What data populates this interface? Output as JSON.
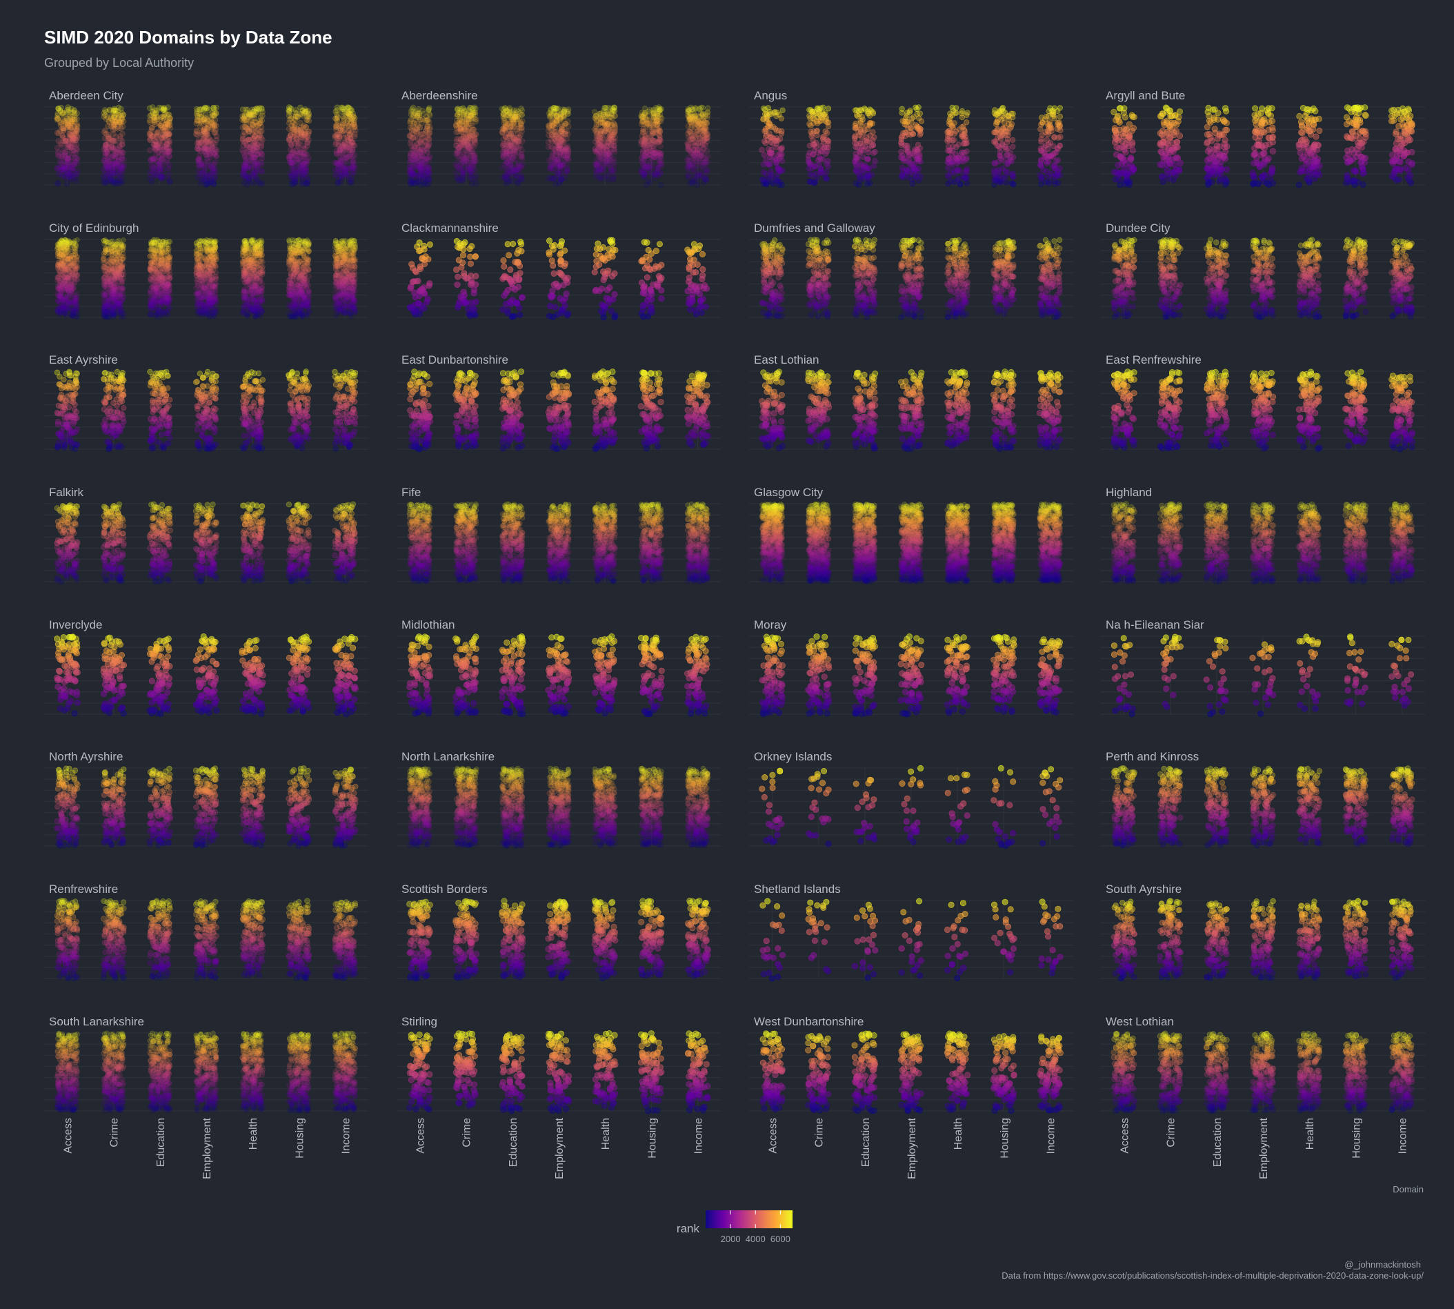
{
  "chart_data": {
    "type": "scatter",
    "title": "SIMD 2020 Domains by Data Zone",
    "subtitle": "Grouped by Local Authority",
    "xlabel": "Domain",
    "ylabel": "",
    "categories": [
      "Access",
      "Crime",
      "Education",
      "Employment",
      "Health",
      "Housing",
      "Income"
    ],
    "ylim": [
      0,
      7000
    ],
    "grid": true,
    "layout": "facets 4 columns x 8 rows",
    "color_scale": {
      "name": "rank",
      "palette": "plasma",
      "ticks": [
        2000,
        4000,
        6000
      ],
      "range": [
        1,
        6976
      ],
      "colors": [
        "#0d0887",
        "#6a00a8",
        "#b12a90",
        "#e16462",
        "#fca636",
        "#f0f921"
      ]
    },
    "legend_position": "bottom",
    "facets": [
      {
        "name": "Aberdeen City",
        "n": 283,
        "density": [
          1.15,
          1.0,
          1.2,
          1.15,
          1.15,
          1.05,
          1.2
        ]
      },
      {
        "name": "Aberdeenshire",
        "n": 340,
        "density": [
          0.85,
          1.3,
          1.2,
          1.3,
          1.4,
          1.3,
          1.3
        ]
      },
      {
        "name": "Angus",
        "n": 155,
        "density": [
          0.9,
          1.1,
          0.95,
          1.0,
          1.0,
          1.1,
          0.95
        ]
      },
      {
        "name": "Argyll and Bute",
        "n": 125,
        "density": [
          0.9,
          1.2,
          1.0,
          1.0,
          1.0,
          0.9,
          1.0
        ]
      },
      {
        "name": "City of Edinburgh",
        "n": 597,
        "density": [
          1.1,
          0.95,
          1.15,
          1.15,
          1.15,
          1.0,
          1.15
        ]
      },
      {
        "name": "Clackmannanshire",
        "n": 72,
        "density": [
          1.0,
          1.0,
          1.0,
          1.0,
          1.0,
          1.0,
          1.0
        ]
      },
      {
        "name": "Dumfries and Galloway",
        "n": 201,
        "density": [
          1.0,
          1.0,
          1.0,
          1.0,
          1.0,
          1.1,
          0.95
        ]
      },
      {
        "name": "Dundee City",
        "n": 188,
        "density": [
          1.1,
          0.95,
          1.0,
          1.0,
          0.95,
          1.0,
          1.0
        ]
      },
      {
        "name": "East Ayrshire",
        "n": 163,
        "density": [
          1.0,
          1.05,
          1.0,
          1.0,
          1.0,
          1.05,
          1.0
        ]
      },
      {
        "name": "East Dunbartonshire",
        "n": 130,
        "density": [
          0.95,
          1.1,
          1.25,
          1.15,
          1.15,
          1.15,
          1.1
        ]
      },
      {
        "name": "East Lothian",
        "n": 132,
        "density": [
          1.0,
          1.05,
          1.0,
          1.0,
          1.0,
          1.0,
          1.0
        ]
      },
      {
        "name": "East Renfrewshire",
        "n": 122,
        "density": [
          1.0,
          1.1,
          1.25,
          1.15,
          1.1,
          1.15,
          1.1
        ]
      },
      {
        "name": "Falkirk",
        "n": 214,
        "density": [
          1.0,
          1.05,
          1.0,
          1.0,
          1.0,
          1.05,
          1.0
        ]
      },
      {
        "name": "Fife",
        "n": 494,
        "density": [
          1.0,
          1.05,
          1.0,
          1.0,
          1.0,
          1.05,
          1.0
        ]
      },
      {
        "name": "Glasgow City",
        "n": 746,
        "density": [
          1.3,
          0.9,
          0.95,
          0.9,
          0.9,
          0.9,
          0.9
        ]
      },
      {
        "name": "Highland",
        "n": 312,
        "density": [
          0.9,
          1.1,
          1.0,
          1.0,
          1.05,
          1.1,
          1.05
        ]
      },
      {
        "name": "Inverclyde",
        "n": 114,
        "density": [
          1.0,
          1.0,
          1.0,
          0.95,
          0.95,
          1.0,
          0.95
        ]
      },
      {
        "name": "Midlothian",
        "n": 115,
        "density": [
          1.0,
          1.0,
          1.0,
          1.0,
          1.0,
          1.05,
          1.0
        ]
      },
      {
        "name": "Moray",
        "n": 116,
        "density": [
          0.9,
          1.1,
          1.0,
          1.05,
          1.05,
          1.1,
          1.05
        ]
      },
      {
        "name": "Na h-Eileanan Siar",
        "n": 36,
        "density": [
          0.8,
          1.4,
          1.0,
          1.0,
          1.0,
          1.1,
          1.0
        ]
      },
      {
        "name": "North Ayrshire",
        "n": 186,
        "density": [
          1.0,
          1.05,
          1.0,
          1.0,
          1.0,
          1.05,
          1.0
        ]
      },
      {
        "name": "North Lanarkshire",
        "n": 447,
        "density": [
          1.0,
          1.05,
          1.0,
          1.0,
          1.0,
          1.05,
          1.0
        ]
      },
      {
        "name": "Orkney Islands",
        "n": 29,
        "density": [
          0.8,
          1.3,
          1.0,
          1.0,
          1.0,
          1.0,
          1.0
        ]
      },
      {
        "name": "Perth and Kinross",
        "n": 186,
        "density": [
          0.95,
          1.15,
          1.05,
          1.1,
          1.1,
          1.15,
          1.1
        ]
      },
      {
        "name": "Renfrewshire",
        "n": 225,
        "density": [
          1.0,
          1.05,
          1.0,
          1.0,
          1.0,
          1.05,
          1.0
        ]
      },
      {
        "name": "Scottish Borders",
        "n": 143,
        "density": [
          0.95,
          1.1,
          1.0,
          1.0,
          1.0,
          1.1,
          1.0
        ]
      },
      {
        "name": "Shetland Islands",
        "n": 30,
        "density": [
          0.8,
          1.3,
          1.0,
          1.0,
          1.0,
          1.0,
          1.0
        ]
      },
      {
        "name": "South Ayrshire",
        "n": 153,
        "density": [
          1.0,
          1.05,
          1.0,
          1.0,
          1.0,
          1.05,
          1.0
        ]
      },
      {
        "name": "South Lanarkshire",
        "n": 431,
        "density": [
          1.0,
          1.05,
          1.0,
          1.0,
          1.0,
          1.05,
          1.0
        ]
      },
      {
        "name": "Stirling",
        "n": 121,
        "density": [
          1.0,
          1.05,
          1.05,
          1.05,
          1.05,
          1.1,
          1.05
        ]
      },
      {
        "name": "West Dunbartonshire",
        "n": 121,
        "density": [
          1.0,
          1.0,
          0.95,
          0.95,
          0.95,
          1.0,
          0.95
        ]
      },
      {
        "name": "West Lothian",
        "n": 239,
        "density": [
          1.0,
          1.05,
          1.0,
          1.0,
          1.0,
          1.05,
          1.0
        ]
      }
    ]
  },
  "credit": "@_johnmackintosh",
  "source": "Data from https://www.gov.scot/publications/scottish-index-of-multiple-deprivation-2020-data-zone-look-up/"
}
